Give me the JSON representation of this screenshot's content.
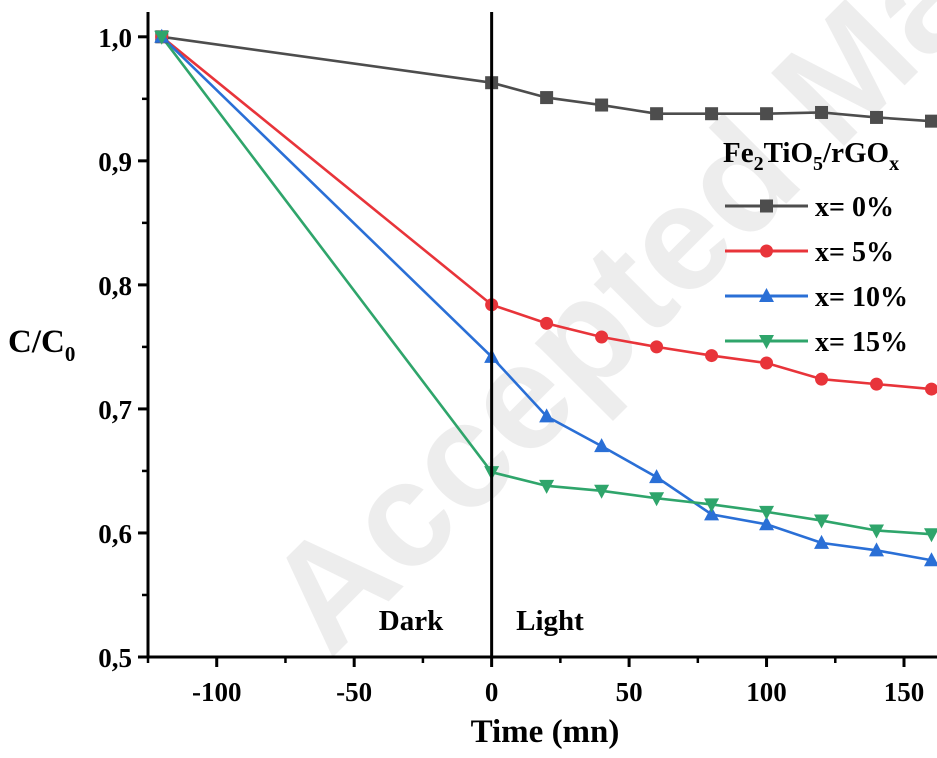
{
  "chart_data": {
    "type": "line",
    "xlabel": "Time (mn)",
    "ylabel": {
      "main": "C/C",
      "sub": "0"
    },
    "xlim": [
      -125,
      162
    ],
    "ylim": [
      0.5,
      1.02
    ],
    "x_ticks": [
      {
        "value": -100,
        "label": "-100"
      },
      {
        "value": -50,
        "label": "-50"
      },
      {
        "value": 0,
        "label": "0"
      },
      {
        "value": 50,
        "label": "50"
      },
      {
        "value": 100,
        "label": "100"
      },
      {
        "value": 150,
        "label": "150"
      }
    ],
    "y_ticks": [
      {
        "value": 0.5,
        "label": "0,5"
      },
      {
        "value": 0.6,
        "label": "0,6"
      },
      {
        "value": 0.7,
        "label": "0,7"
      },
      {
        "value": 0.8,
        "label": "0,8"
      },
      {
        "value": 0.9,
        "label": "0,9"
      },
      {
        "value": 1.0,
        "label": "1,0"
      }
    ],
    "grid": false,
    "legend_position": "right",
    "legend_title": {
      "parts": [
        "Fe",
        "2",
        "TiO",
        "5",
        "/rGO",
        "x"
      ]
    },
    "vertical_line_x": 0,
    "regions": {
      "left": "Dark",
      "right": "Light"
    },
    "x": [
      -120,
      0,
      20,
      40,
      60,
      80,
      100,
      120,
      140,
      160
    ],
    "series": [
      {
        "name": "x= 0%",
        "color": "#4d4d4d",
        "marker": "square",
        "values": [
          1.0,
          0.963,
          0.951,
          0.945,
          0.938,
          0.938,
          0.938,
          0.939,
          0.935,
          0.932
        ]
      },
      {
        "name": "x= 5%",
        "color": "#e8343a",
        "marker": "circle",
        "values": [
          1.0,
          0.784,
          0.769,
          0.758,
          0.75,
          0.743,
          0.737,
          0.724,
          0.72,
          0.716
        ]
      },
      {
        "name": "x= 10%",
        "color": "#2a6fd6",
        "marker": "triangle-up",
        "values": [
          1.0,
          0.742,
          0.694,
          0.67,
          0.645,
          0.615,
          0.607,
          0.592,
          0.586,
          0.578
        ]
      },
      {
        "name": "x= 15%",
        "color": "#2fa56b",
        "marker": "triangle-down",
        "values": [
          1.0,
          0.649,
          0.638,
          0.634,
          0.628,
          0.623,
          0.617,
          0.61,
          0.602,
          0.599
        ]
      }
    ]
  },
  "watermark": "Accepted Manuscript"
}
